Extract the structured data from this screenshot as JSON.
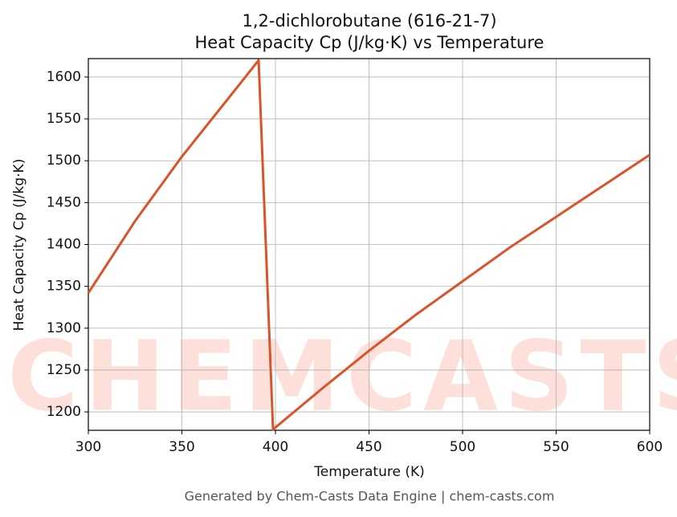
{
  "chart_data": {
    "type": "line",
    "title": "1,2-dichlorobutane (616-21-7)",
    "subtitle": "Heat Capacity Cp (J/kg·K) vs Temperature",
    "x_label": "Temperature (K)",
    "y_label": "Heat Capacity Cp (J/kg·K)",
    "footer": "Generated by Chem-Casts Data Engine | chem-casts.com",
    "watermark": "CHEMCASTS",
    "x": [
      300,
      325,
      350,
      375,
      391,
      398.7,
      425,
      450,
      475,
      500,
      525,
      550,
      575,
      600
    ],
    "series": [
      {
        "name": "Cp",
        "color": "#d9542a",
        "values": [
          1342,
          1428,
          1505,
          1575,
          1620,
          1179,
          1228,
          1273,
          1316,
          1356,
          1396,
          1433,
          1470,
          1507
        ]
      }
    ],
    "xlim": [
      300,
      600
    ],
    "xticks": [
      300,
      350,
      400,
      450,
      500,
      550,
      600
    ],
    "ylim": [
      1178,
      1622
    ],
    "yticks": [
      1200,
      1250,
      1300,
      1350,
      1400,
      1450,
      1500,
      1550,
      1600
    ],
    "grid": true
  }
}
